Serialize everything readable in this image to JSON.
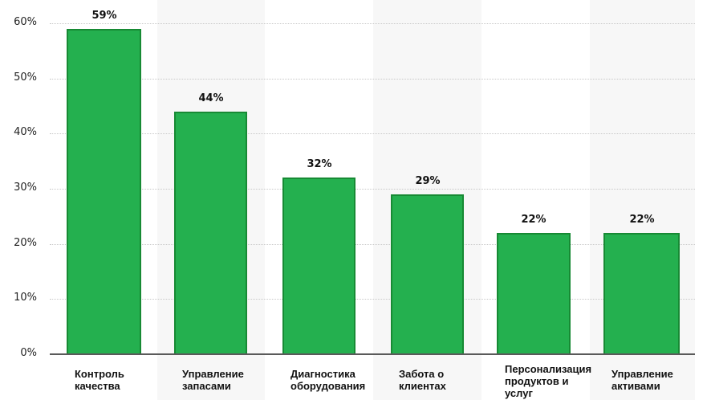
{
  "chart_data": {
    "type": "bar",
    "title": "",
    "xlabel": "",
    "ylabel": "",
    "categories": [
      "Контроль качества",
      "Управление запасами",
      "Диагностика оборудования",
      "Забота о клиентах",
      "Персонализация продуктов и услуг",
      "Управление активами"
    ],
    "values": [
      59,
      44,
      32,
      29,
      22,
      22
    ],
    "value_labels": [
      "59%",
      "44%",
      "32%",
      "29%",
      "22%",
      "22%"
    ],
    "ylim": [
      0,
      60
    ],
    "yticks": [
      "0%",
      "10%",
      "20%",
      "30%",
      "40%",
      "50%",
      "60%"
    ],
    "grid": true,
    "legend": null,
    "bar_color": "#24b04f",
    "bar_border_color": "#178a34"
  },
  "labels": [
    [
      "Контроль",
      "качества"
    ],
    [
      "Управление",
      "запасами"
    ],
    [
      "Диагностика",
      "оборудования"
    ],
    [
      "Забота о",
      "клиентах"
    ],
    [
      "Персонализация",
      "продуктов и",
      "услуг"
    ],
    [
      "Управление",
      "активами"
    ]
  ]
}
